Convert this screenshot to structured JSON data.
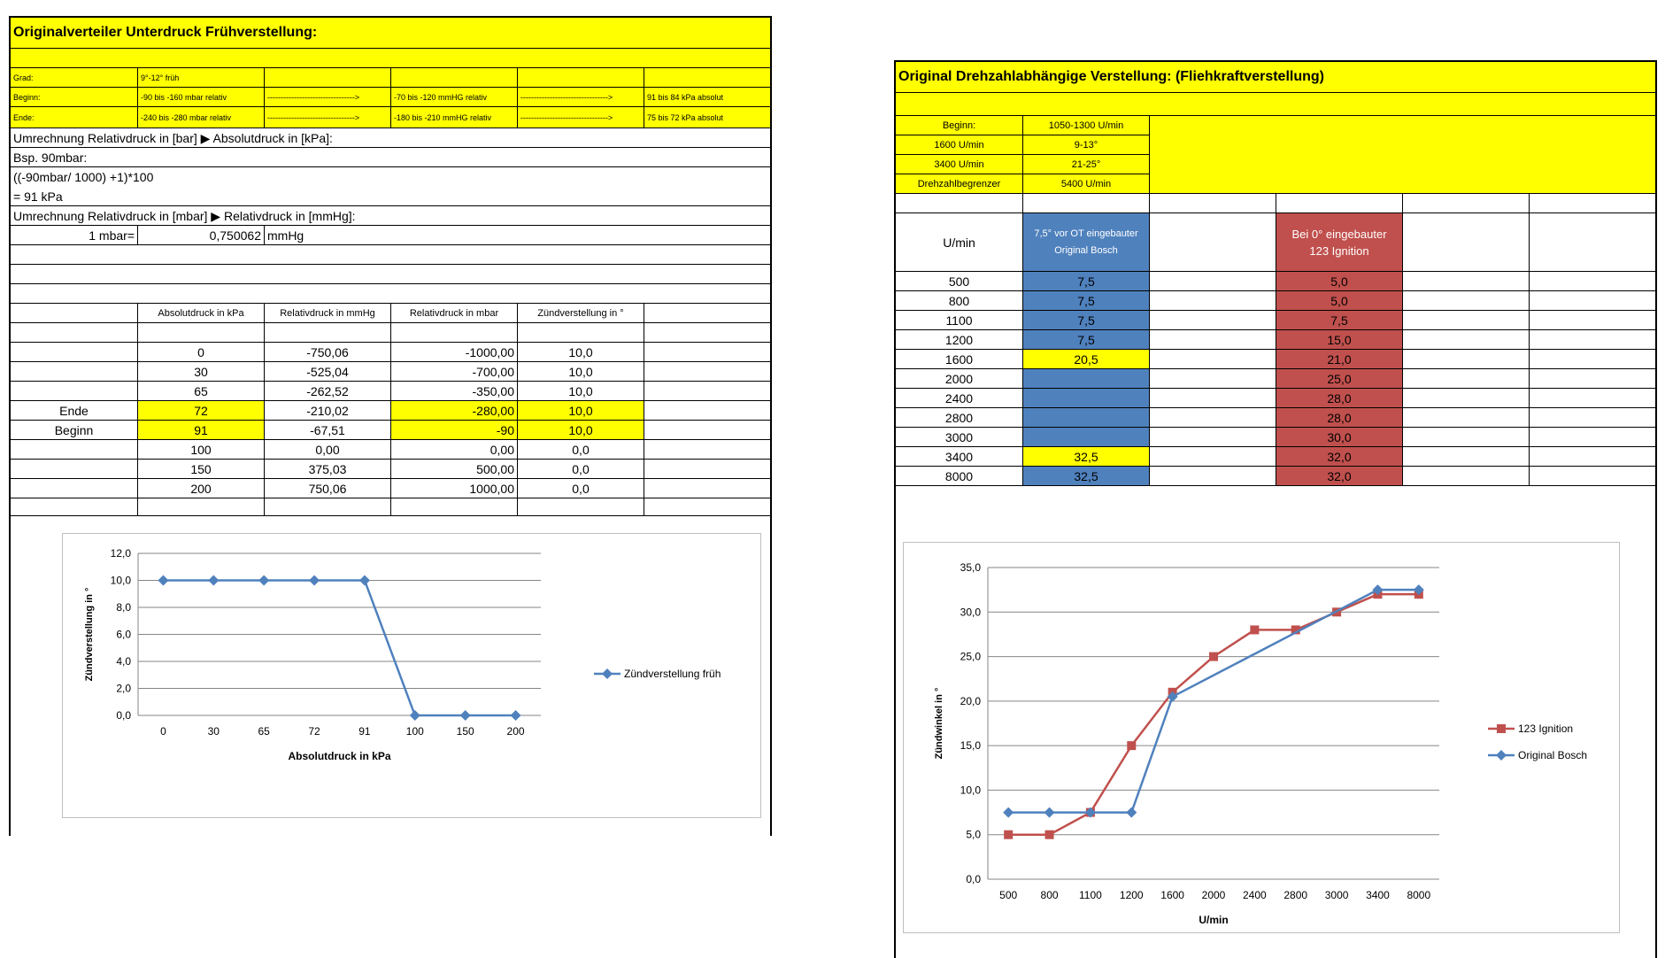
{
  "left": {
    "title": "Originalverteiler Unterdruck Frühverstellung:",
    "info_rows": [
      {
        "label": "Grad:",
        "c1": "9°-12° früh",
        "c2": "",
        "c3": "",
        "c4": "",
        "c5": ""
      },
      {
        "label": "Beginn:",
        "c1": "-90 bis -160 mbar relativ",
        "c2": "--------------------------------->",
        "c3": "-70 bis -120 mmHG relativ",
        "c4": "--------------------------------->",
        "c5": "91 bis 84 kPa absolut"
      },
      {
        "label": "Ende:",
        "c1": "-240 bis -280 mbar relativ",
        "c2": "--------------------------------->",
        "c3": "-180 bis -210 mmHG relativ",
        "c4": "--------------------------------->",
        "c5": "75 bis 72 kPa absolut"
      }
    ],
    "conv1_title": "Umrechnung Relativdruck in [bar] ▶ Absolutdruck in [kPa]:",
    "conv1_example": "Bsp. 90mbar:",
    "conv1_formula": "((-90mbar/ 1000) +1)*100",
    "conv1_result": "= 91 kPa",
    "conv2_title": "Umrechnung Relativdruck in [mbar] ▶ Relativdruck in [mmHg]:",
    "conv2_label": "1 mbar=",
    "conv2_value": "0,750062",
    "conv2_unit": "mmHg",
    "table_headers": [
      "",
      "Absolutdruck in kPa",
      "Relativdruck in mmHg",
      "Relativdruck in mbar",
      "Zündverstellung in °"
    ],
    "table_rows": [
      {
        "label": "",
        "kpa": "0",
        "mmhg": "-750,06",
        "mbar": "-1000,00",
        "zv": "10,0"
      },
      {
        "label": "",
        "kpa": "30",
        "mmhg": "-525,04",
        "mbar": "-700,00",
        "zv": "10,0"
      },
      {
        "label": "",
        "kpa": "65",
        "mmhg": "-262,52",
        "mbar": "-350,00",
        "zv": "10,0"
      },
      {
        "label": "Ende",
        "kpa": "72",
        "mmhg": "-210,02",
        "mbar": "-280,00",
        "zv": "10,0"
      },
      {
        "label": "Beginn",
        "kpa": "91",
        "mmhg": "-67,51",
        "mbar": "-90",
        "zv": "10,0"
      },
      {
        "label": "",
        "kpa": "100",
        "mmhg": "0,00",
        "mbar": "0,00",
        "zv": "0,0"
      },
      {
        "label": "",
        "kpa": "150",
        "mmhg": "375,03",
        "mbar": "500,00",
        "zv": "0,0"
      },
      {
        "label": "",
        "kpa": "200",
        "mmhg": "750,06",
        "mbar": "1000,00",
        "zv": "0,0"
      }
    ]
  },
  "right": {
    "title": "Original Drehzahlabhängige Verstellung: (Fliehkraftverstellung)",
    "info_rows": [
      {
        "label": "Beginn:",
        "value": "1050-1300 U/min"
      },
      {
        "label": "1600 U/min",
        "value": "9-13°"
      },
      {
        "label": "3400 U/min",
        "value": "21-25°"
      },
      {
        "label": "Drehzahlbegrenzer",
        "value": "5400 U/min"
      }
    ],
    "header_umin": "U/min",
    "header_bosch": "7,5° vor OT eingebauter Original Bosch",
    "header_123": "Bei 0° eingebauter 123 Ignition",
    "rows": [
      {
        "rpm": "500",
        "bosch": "7,5",
        "ign": "5,0",
        "bosch_hl": false
      },
      {
        "rpm": "800",
        "bosch": "7,5",
        "ign": "5,0",
        "bosch_hl": false
      },
      {
        "rpm": "1100",
        "bosch": "7,5",
        "ign": "7,5",
        "bosch_hl": false
      },
      {
        "rpm": "1200",
        "bosch": "7,5",
        "ign": "15,0",
        "bosch_hl": false
      },
      {
        "rpm": "1600",
        "bosch": "20,5",
        "ign": "21,0",
        "bosch_hl": true
      },
      {
        "rpm": "2000",
        "bosch": "",
        "ign": "25,0",
        "bosch_hl": false
      },
      {
        "rpm": "2400",
        "bosch": "",
        "ign": "28,0",
        "bosch_hl": false
      },
      {
        "rpm": "2800",
        "bosch": "",
        "ign": "28,0",
        "bosch_hl": false
      },
      {
        "rpm": "3000",
        "bosch": "",
        "ign": "30,0",
        "bosch_hl": false
      },
      {
        "rpm": "3400",
        "bosch": "32,5",
        "ign": "32,0",
        "bosch_hl": true
      },
      {
        "rpm": "8000",
        "bosch": "32,5",
        "ign": "32,0",
        "bosch_hl": false
      }
    ]
  },
  "chart_data": [
    {
      "type": "line",
      "title": "",
      "xlabel": "Absolutdruck in kPa",
      "ylabel": "Zündverstellung in °",
      "categories": [
        "0",
        "30",
        "65",
        "72",
        "91",
        "100",
        "150",
        "200"
      ],
      "series": [
        {
          "name": "Zündverstellung früh",
          "values": [
            10,
            10,
            10,
            10,
            10,
            0,
            0,
            0
          ],
          "color": "#4f81bd",
          "marker": "diamond"
        }
      ],
      "ylim": [
        0,
        12
      ],
      "yticks": [
        "0,0",
        "2,0",
        "4,0",
        "6,0",
        "8,0",
        "10,0",
        "12,0"
      ],
      "grid": true,
      "legend": "right"
    },
    {
      "type": "line",
      "title": "",
      "xlabel": "U/min",
      "ylabel": "Zündwinkel in °",
      "categories": [
        "500",
        "800",
        "1100",
        "1200",
        "1600",
        "2000",
        "2400",
        "2800",
        "3000",
        "3400",
        "8000"
      ],
      "series": [
        {
          "name": "123 Ignition",
          "values": [
            5,
            5,
            7.5,
            15,
            21,
            25,
            28,
            28,
            30,
            32,
            32
          ],
          "color": "#c0504d",
          "marker": "square"
        },
        {
          "name": "Original Bosch",
          "values": [
            7.5,
            7.5,
            7.5,
            7.5,
            20.5,
            null,
            null,
            null,
            null,
            32.5,
            32.5
          ],
          "color": "#4f81bd",
          "marker": "diamond"
        }
      ],
      "ylim": [
        0,
        35
      ],
      "yticks": [
        "0,0",
        "5,0",
        "10,0",
        "15,0",
        "20,0",
        "25,0",
        "30,0",
        "35,0"
      ],
      "grid": true,
      "legend": "right"
    }
  ]
}
